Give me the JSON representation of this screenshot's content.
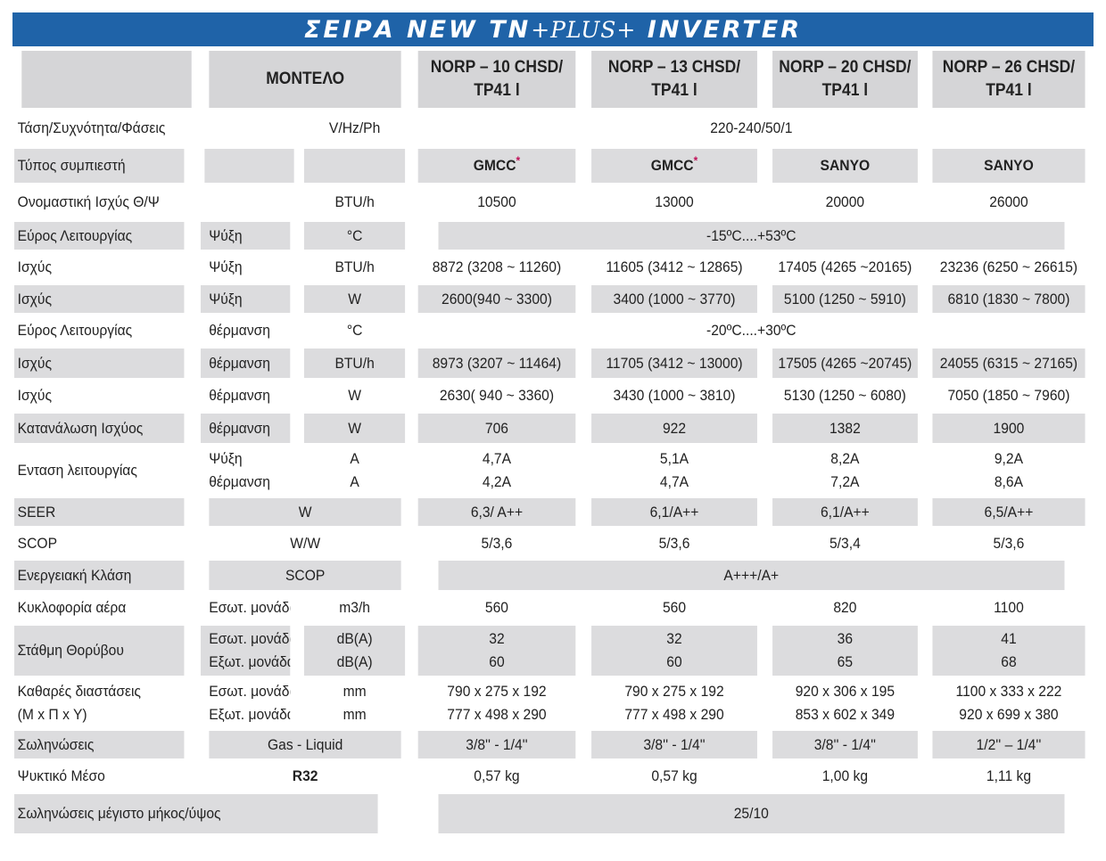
{
  "title": {
    "pre": "ΣΕΙΡΑ NEW TN",
    "plus": "+PLUS+",
    "post": " INVERTER"
  },
  "header": {
    "model_label": "ΜΟΝΤΕΛΟ",
    "models": [
      {
        "line1": "NORP – 10 CHSD/",
        "line2": "TP41 l"
      },
      {
        "line1": "NORP – 13 CHSD/",
        "line2": "TP41 l"
      },
      {
        "line1": "NORP – 20 CHSD/",
        "line2": "TP41 l"
      },
      {
        "line1": "NORP – 26 CHSD/",
        "line2": "TP41 l"
      }
    ]
  },
  "rows": {
    "voltage": {
      "label": "Τάση/Συχνότητα/Φάσεις",
      "unit": "V/Hz/Ph",
      "value": "220-240/50/1"
    },
    "compressor": {
      "label": "Τύπος συμπιεστή",
      "values": [
        "GMCC",
        "GMCC",
        "SANYO",
        "SANYO"
      ],
      "star": "*"
    },
    "nominal": {
      "label": "Ονομαστική Ισχύς Θ/Ψ",
      "unit": "BTU/h",
      "values": [
        "10500",
        "13000",
        "20000",
        "26000"
      ]
    },
    "range_cool": {
      "label": "Εύρος Λειτουργίας",
      "mode": "Ψύξη",
      "unit": "°C",
      "value": "-15ºC....+53ºC"
    },
    "cool_btu": {
      "label": "Ισχύς",
      "mode": "Ψύξη",
      "unit": "BTU/h",
      "values": [
        "8872 (3208 ~ 11260)",
        "11605 (3412 ~ 12865)",
        "17405 (4265 ~20165)",
        "23236 (6250 ~ 26615)"
      ]
    },
    "cool_w": {
      "label": "Ισχύς",
      "mode": "Ψύξη",
      "unit": "W",
      "values": [
        "2600(940 ~ 3300)",
        "3400 (1000 ~ 3770)",
        "5100 (1250 ~ 5910)",
        "6810 (1830 ~ 7800)"
      ]
    },
    "range_heat": {
      "label": "Εύρος Λειτουργίας",
      "mode": "θέρμανση",
      "unit": "°C",
      "value": "-20ºC....+30ºC"
    },
    "heat_btu": {
      "label": "Ισχύς",
      "mode": "θέρμανση",
      "unit": "BTU/h",
      "values": [
        "8973 (3207 ~ 11464)",
        "11705 (3412 ~ 13000)",
        "17505 (4265 ~20745)",
        "24055 (6315 ~ 27165)"
      ]
    },
    "heat_w": {
      "label": "Ισχύς",
      "mode": "θέρμανση",
      "unit": "W",
      "values": [
        "2630( 940 ~ 3360)",
        "3430 (1000 ~ 3810)",
        "5130 (1250 ~ 6080)",
        "7050 (1850 ~ 7960)"
      ]
    },
    "consumption": {
      "label": "Κατανάλωση Ισχύος",
      "mode": "θέρμανση",
      "unit": "W",
      "values": [
        "706",
        "922",
        "1382",
        "1900"
      ]
    },
    "current": {
      "label": "Ενταση λειτουργίας",
      "mode1": "Ψύξη",
      "mode2": "θέρμανση",
      "unit1": "A",
      "unit2": "A",
      "values1": [
        "4,7A",
        "5,1A",
        "8,2A",
        "9,2A"
      ],
      "values2": [
        "4,2A",
        "4,7A",
        "7,2A",
        "8,6A"
      ]
    },
    "seer": {
      "label": "SEER",
      "unit": "W",
      "values": [
        "6,3/ A++",
        "6,1/A++",
        "6,1/A++",
        "6,5/A++"
      ]
    },
    "scop": {
      "label": "SCOP",
      "unit": "W/W",
      "values": [
        "5/3,6",
        "5/3,6",
        "5/3,4",
        "5/3,6"
      ]
    },
    "energy": {
      "label": "Ενεργειακή Κλάση",
      "unit": "SCOP",
      "value": "A+++/A+"
    },
    "airflow": {
      "label": "Κυκλοφορία αέρα",
      "mode": "Εσωτ. μονάδα",
      "unit": "m3/h",
      "values": [
        "560",
        "560",
        "820",
        "1100"
      ]
    },
    "noise": {
      "label": "Στάθμη Θορύβου",
      "mode1": "Εσωτ. μονάδα",
      "mode2": "Εξωτ. μονάδα",
      "unit1": "dB(A)",
      "unit2": "dB(A)",
      "values1": [
        "32",
        "32",
        "36",
        "41"
      ],
      "values2": [
        "60",
        "60",
        "65",
        "68"
      ]
    },
    "dimensions": {
      "label1": "Καθαρές διαστάσεις",
      "label2": "(M x Π x Y)",
      "mode1": "Εσωτ. μονάδα",
      "mode2": "Εξωτ. μονάδα",
      "unit1": "mm",
      "unit2": "mm",
      "values1": [
        "790 x 275 x 192",
        "790 x 275 x 192",
        "920 x 306 x 195",
        "1100 x 333 x 222"
      ],
      "values2": [
        "777 x 498 x 290",
        "777 x 498 x 290",
        "853 x 602 x 349",
        "920 x 699 x 380"
      ]
    },
    "piping": {
      "label": "Σωληνώσεις",
      "unit": "Gas - Liquid",
      "values": [
        "3/8'' - 1/4''",
        "3/8'' - 1/4''",
        "3/8'' - 1/4''",
        "1/2'' – 1/4''"
      ]
    },
    "refrigerant": {
      "label": "Ψυκτικό Μέσο",
      "unit": "R32",
      "values": [
        "0,57 kg",
        "0,57 kg",
        "1,00 kg",
        "1,11 kg"
      ]
    },
    "max_length": {
      "label": "Σωληνώσεις μέγιστο μήκος/ύψος",
      "value": "25/10"
    }
  }
}
